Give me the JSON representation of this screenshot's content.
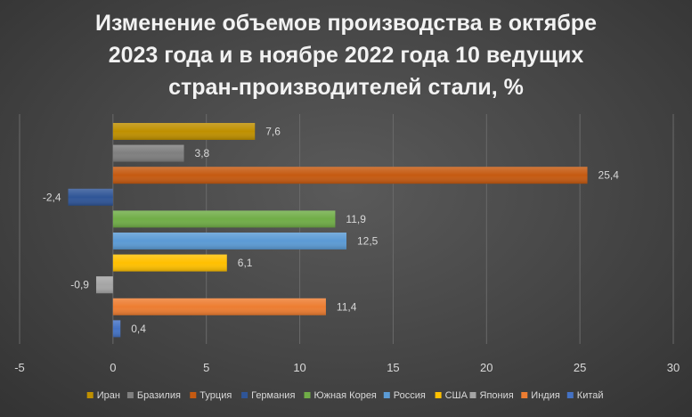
{
  "chart_data": {
    "type": "bar",
    "orientation": "horizontal",
    "title_lines": [
      "Изменение объемов производства в октябре",
      "2023 года и в ноябре 2022 года 10 ведущих",
      "стран-производителей стали, %"
    ],
    "categories": [
      "Иран",
      "Бразилия",
      "Турция",
      "Германия",
      "Южная Корея",
      "Россия",
      "США",
      "Япония",
      "Индия",
      "Китай"
    ],
    "values": [
      7.6,
      3.8,
      25.4,
      -2.4,
      11.9,
      12.5,
      6.1,
      -0.9,
      11.4,
      0.4
    ],
    "value_labels": [
      "7,6",
      "3,8",
      "25,4",
      "-2,4",
      "11,9",
      "12,5",
      "6,1",
      "-0,9",
      "11,4",
      "0,4"
    ],
    "colors": [
      "#bf9000",
      "#7f7f7f",
      "#c55a11",
      "#2f5597",
      "#70ad47",
      "#5b9bd5",
      "#ffc000",
      "#a5a5a5",
      "#ed7d31",
      "#4472c4"
    ],
    "xlim": [
      -5,
      30
    ],
    "x_ticks": [
      "-5",
      "0",
      "5",
      "10",
      "15",
      "20",
      "25",
      "30"
    ],
    "x_tick_values": [
      -5,
      0,
      5,
      10,
      15,
      20,
      25,
      30
    ],
    "grid": true,
    "legend_position": "bottom"
  }
}
